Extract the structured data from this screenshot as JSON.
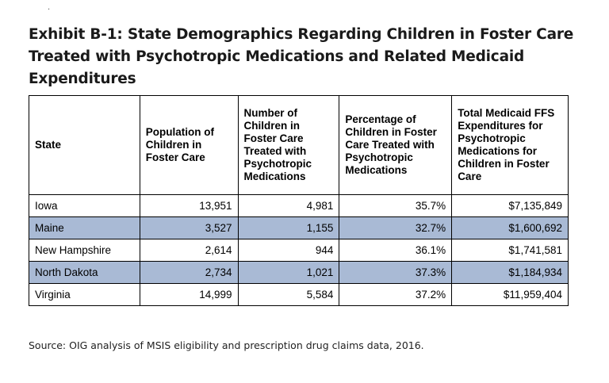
{
  "marker": ".",
  "title": "Exhibit B-1: State Demographics Regarding Children in Foster Care Treated with Psychotropic Medications and Related Medicaid Expenditures",
  "table": {
    "headers": [
      "State",
      "Population of Children in Foster Care",
      "Number of Children in Foster Care Treated with Psychotropic Medications",
      "Percentage of Children in Foster Care Treated with Psychotropic Medications",
      "Total Medicaid FFS Expenditures for Psychotropic Medications for Children in Foster Care"
    ],
    "rows": [
      {
        "state": "Iowa",
        "population": "13,951",
        "treated": "4,981",
        "percentage": "35.7%",
        "expenditures": "$7,135,849",
        "shaded": false
      },
      {
        "state": "Maine",
        "population": "3,527",
        "treated": "1,155",
        "percentage": "32.7%",
        "expenditures": "$1,600,692",
        "shaded": true
      },
      {
        "state": "New Hampshire",
        "population": "2,614",
        "treated": "944",
        "percentage": "36.1%",
        "expenditures": "$1,741,581",
        "shaded": false
      },
      {
        "state": "North Dakota",
        "population": "2,734",
        "treated": "1,021",
        "percentage": "37.3%",
        "expenditures": "$1,184,934",
        "shaded": true
      },
      {
        "state": "Virginia",
        "population": "14,999",
        "treated": "5,584",
        "percentage": "37.2%",
        "expenditures": "$11,959,404",
        "shaded": false
      }
    ]
  },
  "source": "Source: OIG analysis of MSIS eligibility and prescription drug claims data, 2016.",
  "colors": {
    "shaded_row": "#a9bad5",
    "border": "#000000",
    "text": "#000000"
  }
}
